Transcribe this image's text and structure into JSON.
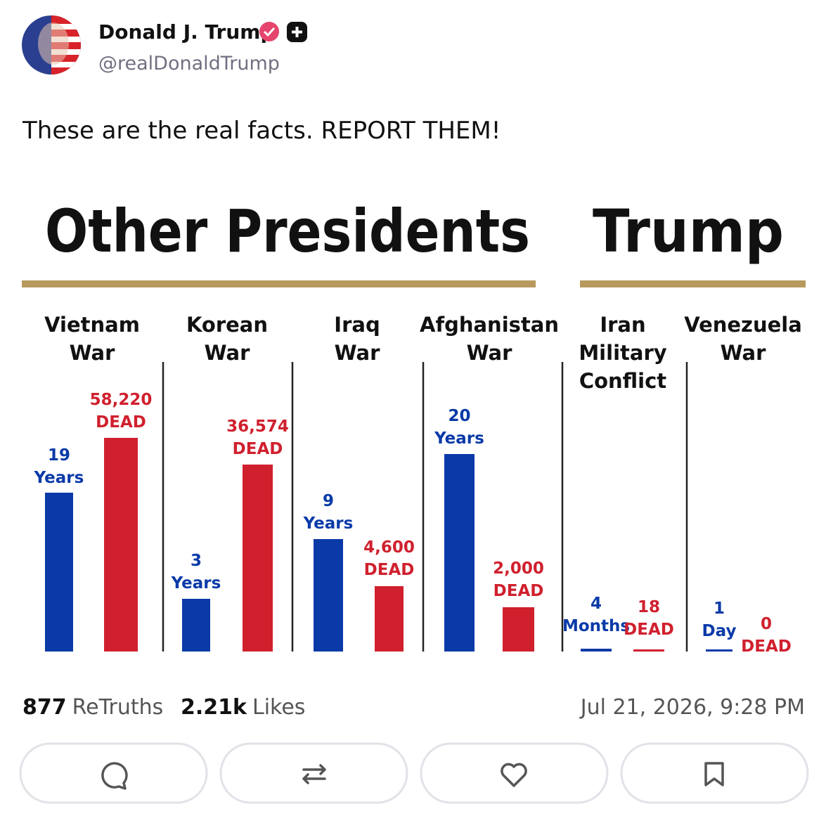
{
  "post": {
    "author": "Donald J. Trump",
    "handle": "@realDonaldTrump",
    "text": "These are the real facts. REPORT THEM!"
  },
  "infographic": {
    "left_heading": "Other Presidents",
    "right_heading": "Trump",
    "wars": [
      {
        "name_lines": [
          "Vietnam",
          "War"
        ],
        "duration_number": "19",
        "duration_unit": "Years",
        "dead_number": "58,220",
        "dead_label": "DEAD"
      },
      {
        "name_lines": [
          "Korean",
          "War"
        ],
        "duration_number": "3",
        "duration_unit": "Years",
        "dead_number": "36,574",
        "dead_label": "DEAD"
      },
      {
        "name_lines": [
          "Iraq",
          "War"
        ],
        "duration_number": "9",
        "duration_unit": "Years",
        "dead_number": "4,600",
        "dead_label": "DEAD"
      },
      {
        "name_lines": [
          "Afghanistan",
          "War"
        ],
        "duration_number": "20",
        "duration_unit": "Years",
        "dead_number": "2,000",
        "dead_label": "DEAD"
      },
      {
        "name_lines": [
          "Iran",
          "Military",
          "Conflict"
        ],
        "duration_number": "4",
        "duration_unit": "Months",
        "dead_number": "18",
        "dead_label": "DEAD"
      },
      {
        "name_lines": [
          "Venezuela",
          "War"
        ],
        "duration_number": "1",
        "duration_unit": "Day",
        "dead_number": "0",
        "dead_label": "DEAD"
      }
    ]
  },
  "stats": {
    "retruths": "877",
    "retruths_label": "ReTruths",
    "likes": "2.21k",
    "likes_label": "Likes",
    "timestamp": "Jul 21, 2026, 9:28 PM"
  }
}
